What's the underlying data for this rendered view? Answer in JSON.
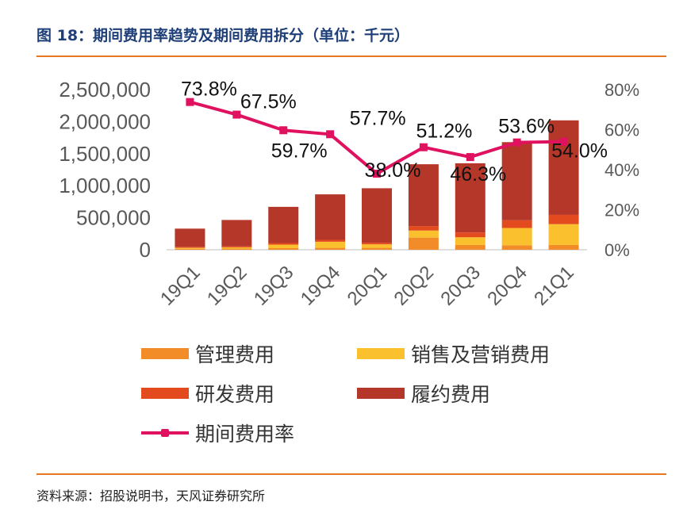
{
  "header": {
    "title": "图 18：期间费用率趋势及期间费用拆分（单位：千元）"
  },
  "footer": {
    "source": "资料来源：招股说明书，天风证券研究所"
  },
  "colors": {
    "management": "#f28c28",
    "sales": "#fbc02d",
    "rnd": "#e34a1d",
    "fulfillment": "#b5372a",
    "rate": "#e0115f",
    "axis": "#595959",
    "rule": "#e87722"
  },
  "chart_data": {
    "type": "bar",
    "stacked": true,
    "title": "期间费用率趋势及期间费用拆分（单位：千元）",
    "categories": [
      "19Q1",
      "19Q2",
      "19Q3",
      "19Q4",
      "20Q1",
      "20Q2",
      "20Q3",
      "20Q4",
      "21Q1"
    ],
    "series": [
      {
        "key": "management",
        "name": "管理费用",
        "values": [
          15000,
          18000,
          25000,
          30000,
          30000,
          190000,
          75000,
          70000,
          75000
        ]
      },
      {
        "key": "sales",
        "name": "销售及营销费用",
        "values": [
          15000,
          20000,
          55000,
          95000,
          55000,
          110000,
          120000,
          270000,
          325000
        ]
      },
      {
        "key": "rnd",
        "name": "研发费用",
        "values": [
          15000,
          15000,
          25000,
          30000,
          25000,
          70000,
          75000,
          120000,
          145000
        ]
      },
      {
        "key": "fulfillment",
        "name": "履约费用",
        "values": [
          285000,
          412000,
          565000,
          710000,
          850000,
          965000,
          1080000,
          1220000,
          1475000
        ]
      }
    ],
    "line": {
      "key": "rate",
      "name": "期间费用率",
      "axis": "right",
      "values": [
        73.8,
        67.5,
        59.7,
        57.7,
        38.0,
        51.2,
        46.3,
        53.6,
        54.0
      ],
      "labels": [
        "73.8%",
        "67.5%",
        "59.7%",
        "57.7%",
        "38.0%",
        "51.2%",
        "46.3%",
        "53.6%",
        "54.0%"
      ]
    },
    "y_left": {
      "min": 0,
      "max": 2500000,
      "ticks": [
        0,
        500000,
        1000000,
        1500000,
        2000000,
        2500000
      ],
      "tick_labels": [
        "0",
        "500,000",
        "1,000,000",
        "1,500,000",
        "2,000,000",
        "2,500,000"
      ]
    },
    "y_right": {
      "min": 0,
      "max": 80,
      "ticks": [
        0,
        20,
        40,
        60,
        80
      ],
      "tick_labels": [
        "0%",
        "20%",
        "40%",
        "60%",
        "80%"
      ]
    },
    "legend_position": "bottom"
  }
}
